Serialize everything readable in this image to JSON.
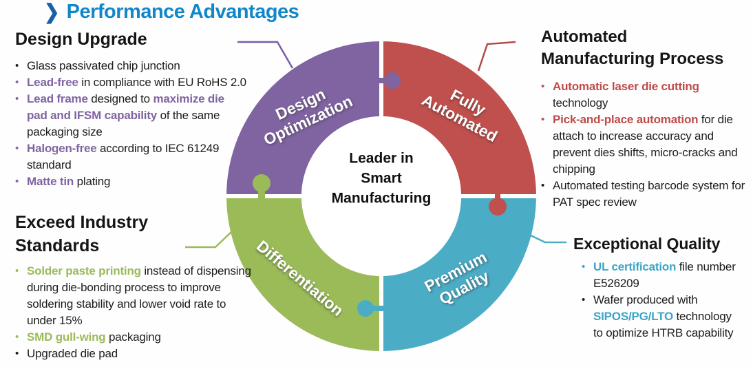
{
  "page": {
    "title": "Performance Advantages"
  },
  "colors": {
    "title_blue": "#1187ca",
    "chevron_blue": "#1a5fa9",
    "purple": "#8064A2",
    "red": "#C0504D",
    "green": "#9BBB59",
    "blue": "#4BACC6",
    "body_text": "#1c1c1c"
  },
  "donut": {
    "center_label_lines": [
      "Leader in",
      "Smart",
      "Manufacturing"
    ],
    "segments": [
      {
        "name": "design-optimization",
        "label_lines": [
          "Design",
          "Optimization"
        ],
        "color": "#8064A2",
        "position": "top-left"
      },
      {
        "name": "fully-automated",
        "label_lines": [
          "Fully",
          "Automated"
        ],
        "color": "#C0504D",
        "position": "top-right"
      },
      {
        "name": "differentiation",
        "label_lines": [
          "Differentiation"
        ],
        "color": "#9BBB59",
        "position": "bottom-left"
      },
      {
        "name": "premium-quality",
        "label_lines": [
          "Premium",
          "Quality"
        ],
        "color": "#4BACC6",
        "position": "bottom-right"
      }
    ]
  },
  "sections": [
    {
      "id": "design-upgrade",
      "heading_lines": [
        "Design Upgrade"
      ],
      "accent": "#8064A2",
      "bullets": [
        {
          "marker": "#1c1c1c",
          "parts": [
            {
              "t": "Glass passivated chip junction"
            }
          ]
        },
        {
          "marker": "#8064A2",
          "parts": [
            {
              "t": "Lead-free",
              "b": true,
              "c": "#8064A2"
            },
            {
              "t": " in compliance with EU RoHS 2.0"
            }
          ]
        },
        {
          "marker": "#8064A2",
          "parts": [
            {
              "t": "Lead frame",
              "b": true,
              "c": "#8064A2"
            },
            {
              "t": " designed to "
            },
            {
              "t": "maximize die pad and IFSM capability",
              "b": true,
              "c": "#8064A2"
            },
            {
              "t": " of the same packaging size"
            }
          ]
        },
        {
          "marker": "#8064A2",
          "parts": [
            {
              "t": "Halogen-free",
              "b": true,
              "c": "#8064A2"
            },
            {
              "t": " according to IEC 61249 standard"
            }
          ]
        },
        {
          "marker": "#8064A2",
          "parts": [
            {
              "t": "Matte tin",
              "b": true,
              "c": "#8064A2"
            },
            {
              "t": " plating"
            }
          ]
        }
      ]
    },
    {
      "id": "exceed-industry-standards",
      "heading_lines": [
        "Exceed Industry",
        "Standards"
      ],
      "accent": "#9BBB59",
      "bullets": [
        {
          "marker": "#9BBB59",
          "parts": [
            {
              "t": "Solder paste printing",
              "b": true,
              "c": "#9BBB59"
            },
            {
              "t": " instead of dispensing during die-bonding process to improve soldering stability and lower void rate to under 15%"
            }
          ]
        },
        {
          "marker": "#9BBB59",
          "parts": [
            {
              "t": "SMD gull-wing",
              "b": true,
              "c": "#9BBB59"
            },
            {
              "t": " packaging"
            }
          ]
        },
        {
          "marker": "#1c1c1c",
          "parts": [
            {
              "t": "Upgraded die pad"
            }
          ]
        }
      ]
    },
    {
      "id": "automated-manufacturing-process",
      "heading_lines": [
        "Automated",
        "Manufacturing Process"
      ],
      "accent": "#C0504D",
      "bullets": [
        {
          "marker": "#C0504D",
          "parts": [
            {
              "t": "Automatic laser die cutting",
              "b": true,
              "c": "#BE4B48"
            },
            {
              "t": " technology"
            }
          ]
        },
        {
          "marker": "#C0504D",
          "parts": [
            {
              "t": "Pick-and-place automation",
              "b": true,
              "c": "#BE4B48"
            },
            {
              "t": " for die attach to increase accuracy and prevent dies shifts, micro-cracks and chipping"
            }
          ]
        },
        {
          "marker": "#1c1c1c",
          "parts": [
            {
              "t": "Automated testing barcode system for PAT spec review"
            }
          ]
        }
      ]
    },
    {
      "id": "exceptional-quality",
      "heading_lines": [
        "Exceptional Quality"
      ],
      "accent": "#4BACC6",
      "bullets": [
        {
          "marker": "#3DA5C6",
          "parts": [
            {
              "t": "UL certification",
              "b": true,
              "c": "#3DA5C6"
            },
            {
              "t": " file number E526209"
            }
          ]
        },
        {
          "marker": "#1c1c1c",
          "parts": [
            {
              "t": "Wafer produced with "
            },
            {
              "t": "SIPOS/PG/LTO",
              "b": true,
              "c": "#3DA5C6"
            },
            {
              "t": " technology to optimize HTRB capability"
            }
          ]
        }
      ]
    }
  ]
}
